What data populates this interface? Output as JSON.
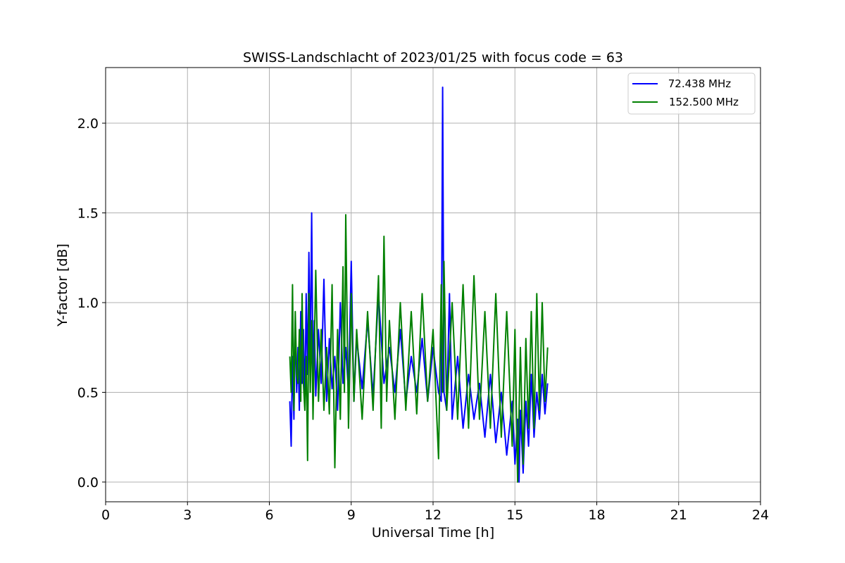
{
  "chart_data": {
    "type": "line",
    "title": "SWISS-Landschlacht of 2023/01/25 with focus code = 63",
    "xlabel": "Universal Time [h]",
    "ylabel": "Y-factor [dB]",
    "xlim": [
      0,
      24
    ],
    "ylim": [
      -0.11,
      2.31
    ],
    "xticks": [
      0,
      3,
      6,
      9,
      12,
      15,
      18,
      21,
      24
    ],
    "xtick_labels": [
      "0",
      "3",
      "6",
      "9",
      "12",
      "15",
      "18",
      "21",
      "24"
    ],
    "yticks": [
      0.0,
      0.5,
      1.0,
      1.5,
      2.0
    ],
    "ytick_labels": [
      "0.0",
      "0.5",
      "1.0",
      "1.5",
      "2.0"
    ],
    "grid": true,
    "legend_position": "top-right",
    "series": [
      {
        "name": " 72.438 MHz",
        "color": "#0000ff",
        "x": [
          6.75,
          6.8,
          6.85,
          6.9,
          6.95,
          7.0,
          7.05,
          7.1,
          7.15,
          7.2,
          7.25,
          7.3,
          7.35,
          7.4,
          7.45,
          7.5,
          7.55,
          7.6,
          7.65,
          7.7,
          7.8,
          7.9,
          8.0,
          8.1,
          8.2,
          8.3,
          8.4,
          8.5,
          8.6,
          8.7,
          8.8,
          8.9,
          9.0,
          9.1,
          9.2,
          9.4,
          9.6,
          9.8,
          10.0,
          10.2,
          10.4,
          10.6,
          10.8,
          11.0,
          11.2,
          11.4,
          11.6,
          11.8,
          12.0,
          12.2,
          12.3,
          12.35,
          12.4,
          12.5,
          12.6,
          12.7,
          12.9,
          13.1,
          13.3,
          13.5,
          13.7,
          13.9,
          14.1,
          14.3,
          14.5,
          14.7,
          14.9,
          15.0,
          15.1,
          15.15,
          15.2,
          15.3,
          15.4,
          15.5,
          15.6,
          15.7,
          15.8,
          15.9,
          16.0,
          16.1,
          16.2
        ],
        "y": [
          0.45,
          0.2,
          0.7,
          0.35,
          0.9,
          0.5,
          0.75,
          0.4,
          0.95,
          0.55,
          0.85,
          0.42,
          1.05,
          0.6,
          1.28,
          0.65,
          1.5,
          0.55,
          0.9,
          0.48,
          0.85,
          0.55,
          1.13,
          0.45,
          0.8,
          0.52,
          0.7,
          0.4,
          1.0,
          0.55,
          0.75,
          0.5,
          1.23,
          0.45,
          0.8,
          0.52,
          0.9,
          0.48,
          1.05,
          0.55,
          0.75,
          0.5,
          0.85,
          0.45,
          0.7,
          0.5,
          0.8,
          0.45,
          0.75,
          0.5,
          0.45,
          2.2,
          0.5,
          0.4,
          1.05,
          0.35,
          0.7,
          0.3,
          0.6,
          0.35,
          0.55,
          0.25,
          0.6,
          0.22,
          0.5,
          0.15,
          0.45,
          0.1,
          0.35,
          0.0,
          0.4,
          0.05,
          0.45,
          0.2,
          0.6,
          0.25,
          0.5,
          0.35,
          0.6,
          0.38,
          0.55
        ]
      },
      {
        "name": "152.500 MHz",
        "color": "#008000",
        "x": [
          6.75,
          6.8,
          6.85,
          6.9,
          6.95,
          7.0,
          7.05,
          7.1,
          7.15,
          7.2,
          7.25,
          7.3,
          7.35,
          7.4,
          7.45,
          7.5,
          7.55,
          7.6,
          7.7,
          7.8,
          7.9,
          8.0,
          8.1,
          8.2,
          8.3,
          8.4,
          8.5,
          8.6,
          8.7,
          8.75,
          8.8,
          8.9,
          9.0,
          9.1,
          9.2,
          9.4,
          9.6,
          9.8,
          10.0,
          10.1,
          10.2,
          10.3,
          10.4,
          10.6,
          10.8,
          11.0,
          11.2,
          11.4,
          11.6,
          11.8,
          12.0,
          12.2,
          12.3,
          12.35,
          12.4,
          12.5,
          12.7,
          12.9,
          13.1,
          13.3,
          13.5,
          13.7,
          13.9,
          14.1,
          14.3,
          14.5,
          14.7,
          14.9,
          15.0,
          15.1,
          15.2,
          15.3,
          15.4,
          15.5,
          15.6,
          15.7,
          15.8,
          15.9,
          16.0,
          16.1,
          16.2
        ],
        "y": [
          0.7,
          0.5,
          1.1,
          0.4,
          0.95,
          0.6,
          0.55,
          0.85,
          0.45,
          1.05,
          0.55,
          0.4,
          0.7,
          0.12,
          1.05,
          0.5,
          0.9,
          0.35,
          1.18,
          0.45,
          0.85,
          0.4,
          0.75,
          0.38,
          1.1,
          0.08,
          0.85,
          0.35,
          1.2,
          0.5,
          1.49,
          0.3,
          1.05,
          0.45,
          0.85,
          0.35,
          0.95,
          0.4,
          1.15,
          0.3,
          1.37,
          0.45,
          0.9,
          0.35,
          1.0,
          0.4,
          0.95,
          0.38,
          1.05,
          0.45,
          0.85,
          0.13,
          1.1,
          0.5,
          1.23,
          0.4,
          1.0,
          0.35,
          1.1,
          0.3,
          1.15,
          0.35,
          0.95,
          0.3,
          1.05,
          0.25,
          0.95,
          0.2,
          0.85,
          0.0,
          0.75,
          0.1,
          0.8,
          0.3,
          0.95,
          0.3,
          1.05,
          0.4,
          1.0,
          0.45,
          0.75
        ]
      }
    ]
  }
}
